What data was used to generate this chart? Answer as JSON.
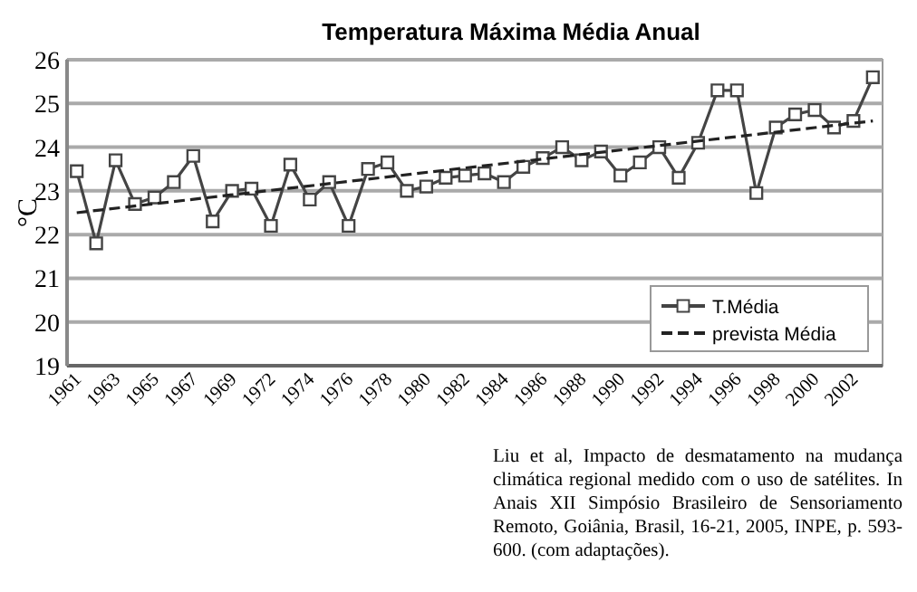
{
  "chart_data": {
    "type": "line",
    "title": "Temperatura Máxima Média Anual",
    "ylabel": "°C",
    "categories": [
      "1961",
      null,
      "1963",
      null,
      "1965",
      null,
      "1967",
      null,
      "1969",
      null,
      "1972",
      null,
      "1974",
      null,
      "1976",
      null,
      "1978",
      null,
      "1980",
      null,
      "1982",
      null,
      "1984",
      null,
      "1986",
      null,
      "1988",
      null,
      "1990",
      null,
      "1992",
      null,
      "1994",
      null,
      "1996",
      null,
      "1998",
      null,
      "2000",
      null,
      "2002",
      null
    ],
    "series": [
      {
        "name": "T.Média",
        "color": "#444444",
        "marker": "square",
        "line_style": "solid",
        "values": [
          23.45,
          21.8,
          23.7,
          22.7,
          22.85,
          23.2,
          23.8,
          22.3,
          23.0,
          23.05,
          22.2,
          23.6,
          22.8,
          23.2,
          22.2,
          23.5,
          23.65,
          23.0,
          23.1,
          23.3,
          23.35,
          23.4,
          23.2,
          23.55,
          23.75,
          24.0,
          23.7,
          23.9,
          23.35,
          23.65,
          24.0,
          23.3,
          24.1,
          25.3,
          25.3,
          22.95,
          24.45,
          24.75,
          24.85,
          24.45,
          24.6,
          25.6
        ]
      },
      {
        "name": "prevista Média",
        "color": "#222222",
        "marker": "none",
        "line_style": "dashed",
        "values": [
          22.5,
          null,
          null,
          null,
          null,
          null,
          null,
          null,
          null,
          null,
          null,
          null,
          null,
          null,
          null,
          null,
          null,
          null,
          null,
          null,
          null,
          null,
          null,
          null,
          null,
          null,
          null,
          null,
          null,
          null,
          null,
          null,
          null,
          null,
          null,
          null,
          null,
          null,
          null,
          null,
          null,
          24.6
        ]
      }
    ],
    "ylim": [
      19,
      26
    ],
    "yticks": [
      19,
      20,
      21,
      22,
      23,
      24,
      25,
      26
    ],
    "grid": "y",
    "legend": "bottom right",
    "annotations": [
      "Liu et al, Impacto de desmatamento na mudança climática regional medido com o uso de satélites. In Anais XII Simpósio Brasileiro de Sensoriamento Remoto, Goiânia, Brasil, 16-21, 2005, INPE, p. 593-600. (com adaptações)."
    ]
  }
}
